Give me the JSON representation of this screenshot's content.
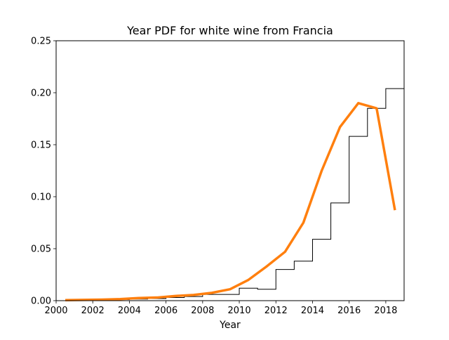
{
  "chart_data": {
    "type": "line",
    "title": "Year PDF for white wine from Francia",
    "xlabel": "Year",
    "ylabel": "",
    "xlim": [
      2000,
      2019
    ],
    "ylim": [
      0,
      0.25
    ],
    "grid": false,
    "x_ticks": [
      2000,
      2002,
      2004,
      2006,
      2008,
      2010,
      2012,
      2014,
      2016,
      2018
    ],
    "x_tick_labels": [
      "2000",
      "2002",
      "2004",
      "2006",
      "2008",
      "2010",
      "2012",
      "2014",
      "2016",
      "2018"
    ],
    "y_ticks": [
      0.0,
      0.05,
      0.1,
      0.15,
      0.2,
      0.25
    ],
    "y_tick_labels": [
      "0.00",
      "0.05",
      "0.10",
      "0.15",
      "0.20",
      "0.25"
    ],
    "histogram": {
      "style": "step",
      "color": "#000000",
      "edges": [
        2000,
        2001,
        2002,
        2003,
        2004,
        2005,
        2006,
        2007,
        2008,
        2009,
        2010,
        2011,
        2012,
        2013,
        2014,
        2015,
        2016,
        2017,
        2018,
        2019
      ],
      "density": [
        0.0,
        0.0005,
        0.0008,
        0.001,
        0.0015,
        0.002,
        0.003,
        0.004,
        0.006,
        0.006,
        0.012,
        0.011,
        0.03,
        0.038,
        0.059,
        0.094,
        0.158,
        0.185,
        0.204,
        0.18
      ]
    },
    "series": [
      {
        "color": "#ff7f0e",
        "x": [
          2000.5,
          2001.5,
          2002.5,
          2003.5,
          2004.5,
          2005.5,
          2006.5,
          2007.5,
          2008.5,
          2009.5,
          2010.5,
          2011.5,
          2012.5,
          2013.5,
          2014.5,
          2015.5,
          2016.5,
          2017.5,
          2018.5
        ],
        "y": [
          0.0005,
          0.0008,
          0.001,
          0.0015,
          0.0025,
          0.003,
          0.0045,
          0.0055,
          0.0075,
          0.011,
          0.02,
          0.033,
          0.047,
          0.075,
          0.125,
          0.167,
          0.19,
          0.185,
          0.087
        ]
      }
    ]
  }
}
